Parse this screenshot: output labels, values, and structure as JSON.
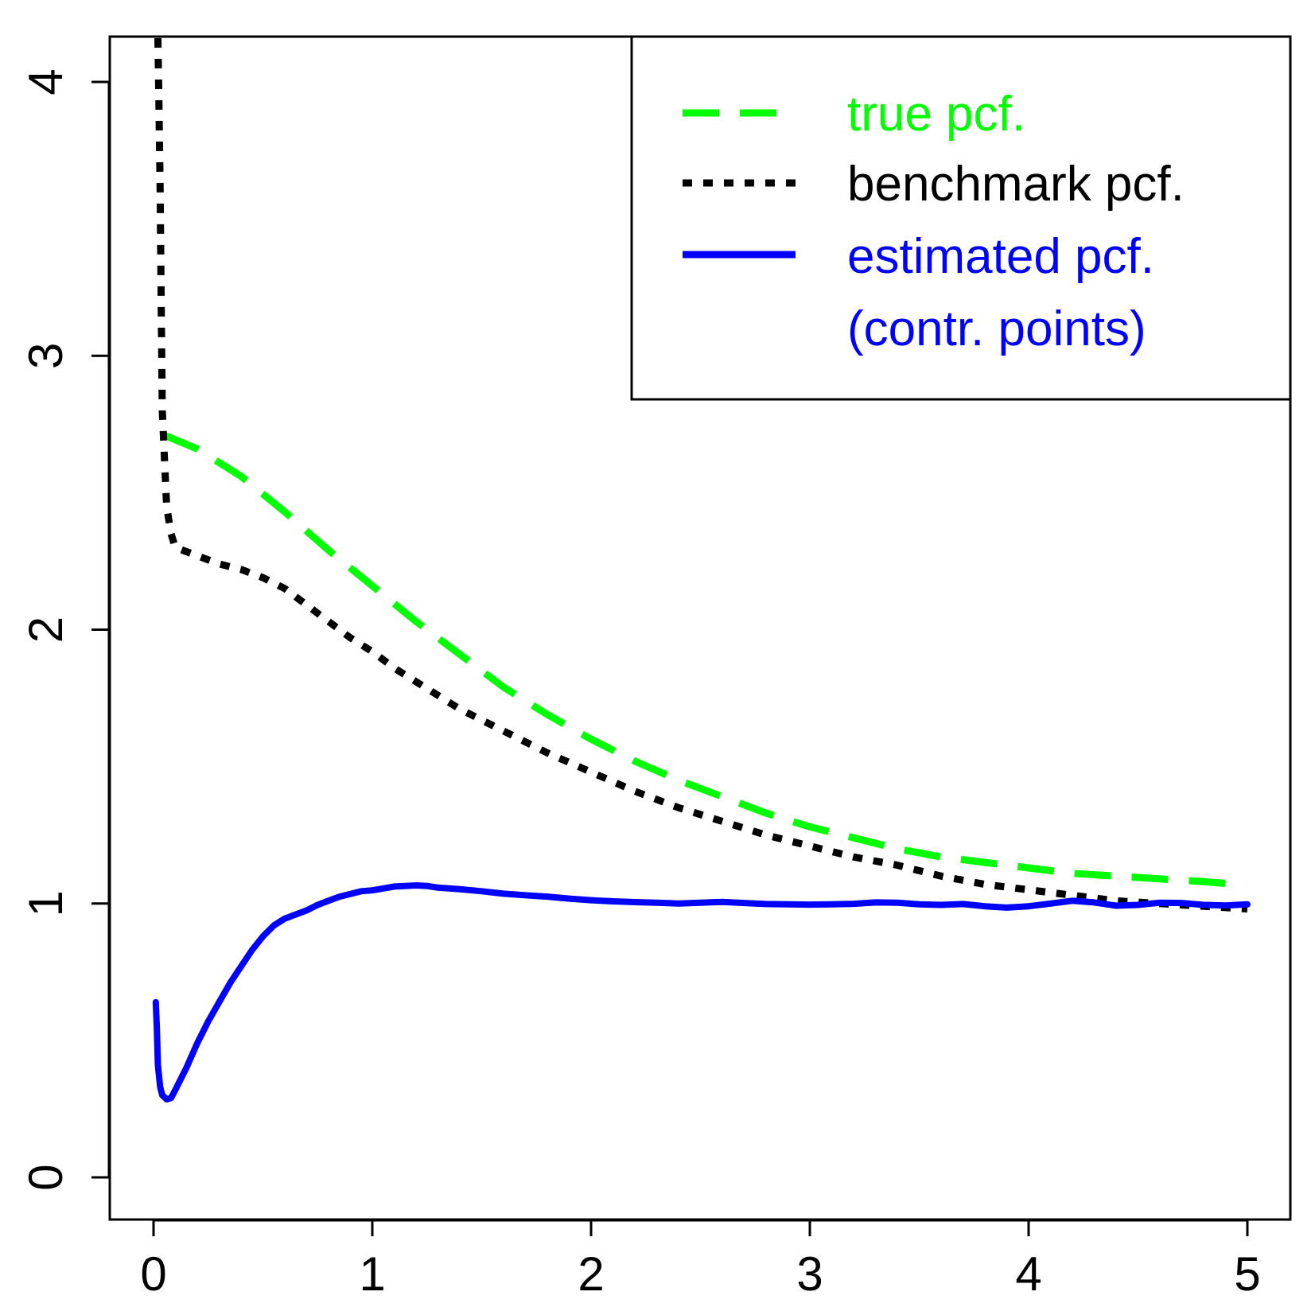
{
  "chart_data": {
    "type": "line",
    "title": "",
    "xlabel": "",
    "ylabel": "",
    "xlim": [
      0,
      5
    ],
    "ylim": [
      -0.16,
      4.16
    ],
    "x_ticks": [
      0,
      1,
      2,
      3,
      4,
      5
    ],
    "y_ticks": [
      0,
      1,
      2,
      3,
      4
    ],
    "x_tick_labels": [
      "0",
      "1",
      "2",
      "3",
      "4",
      "5"
    ],
    "y_tick_labels": [
      "0",
      "1",
      "2",
      "3",
      "4"
    ],
    "grid": false,
    "legend_position": "top-right",
    "series": [
      {
        "name": "true pcf.",
        "color": "#00ff00",
        "style": "dashed",
        "x": [
          0.05,
          0.2,
          0.4,
          0.6,
          0.8,
          1.0,
          1.2,
          1.4,
          1.6,
          1.8,
          2.0,
          2.2,
          2.4,
          2.6,
          2.8,
          3.0,
          3.2,
          3.4,
          3.6,
          3.8,
          4.0,
          4.2,
          4.4,
          4.6,
          4.8,
          4.95
        ],
        "values": [
          2.71,
          2.66,
          2.56,
          2.43,
          2.29,
          2.16,
          2.03,
          1.91,
          1.79,
          1.69,
          1.6,
          1.52,
          1.45,
          1.39,
          1.33,
          1.28,
          1.24,
          1.2,
          1.17,
          1.15,
          1.13,
          1.11,
          1.1,
          1.09,
          1.08,
          1.07
        ]
      },
      {
        "name": "benchmark pcf.",
        "color": "#000000",
        "style": "dotted",
        "x": [
          0.02,
          0.025,
          0.03,
          0.035,
          0.04,
          0.05,
          0.06,
          0.08,
          0.1,
          0.2,
          0.3,
          0.4,
          0.5,
          0.6,
          0.7,
          0.8,
          0.9,
          1.0,
          1.1,
          1.2,
          1.3,
          1.4,
          1.5,
          1.6,
          1.7,
          1.8,
          2.0,
          2.2,
          2.4,
          2.6,
          2.8,
          3.0,
          3.2,
          3.4,
          3.6,
          3.8,
          4.0,
          4.2,
          4.4,
          4.6,
          4.8,
          5.0
        ],
        "values": [
          4.16,
          3.9,
          3.6,
          3.2,
          2.8,
          2.62,
          2.45,
          2.35,
          2.3,
          2.27,
          2.24,
          2.22,
          2.19,
          2.15,
          2.09,
          2.03,
          1.97,
          1.92,
          1.86,
          1.81,
          1.76,
          1.71,
          1.67,
          1.63,
          1.59,
          1.55,
          1.48,
          1.41,
          1.35,
          1.3,
          1.25,
          1.21,
          1.17,
          1.14,
          1.1,
          1.07,
          1.05,
          1.03,
          1.01,
          1.0,
          0.99,
          0.98
        ]
      },
      {
        "name": "estimated pcf. (contr. points)",
        "color": "#0000ff",
        "style": "solid",
        "x": [
          0.01,
          0.015,
          0.02,
          0.03,
          0.04,
          0.06,
          0.08,
          0.1,
          0.15,
          0.2,
          0.25,
          0.3,
          0.35,
          0.4,
          0.45,
          0.5,
          0.55,
          0.6,
          0.65,
          0.7,
          0.75,
          0.8,
          0.85,
          0.9,
          0.95,
          1.0,
          1.05,
          1.1,
          1.15,
          1.2,
          1.25,
          1.3,
          1.4,
          1.5,
          1.6,
          1.7,
          1.8,
          1.9,
          2.0,
          2.1,
          2.2,
          2.3,
          2.4,
          2.5,
          2.6,
          2.7,
          2.8,
          2.9,
          3.0,
          3.1,
          3.2,
          3.3,
          3.4,
          3.5,
          3.6,
          3.7,
          3.8,
          3.9,
          4.0,
          4.1,
          4.2,
          4.3,
          4.4,
          4.5,
          4.6,
          4.7,
          4.8,
          4.9,
          5.0
        ],
        "values": [
          0.64,
          0.55,
          0.41,
          0.33,
          0.3,
          0.285,
          0.29,
          0.32,
          0.4,
          0.49,
          0.57,
          0.64,
          0.71,
          0.77,
          0.83,
          0.88,
          0.92,
          0.945,
          0.96,
          0.975,
          0.995,
          1.01,
          1.025,
          1.035,
          1.045,
          1.048,
          1.055,
          1.062,
          1.064,
          1.066,
          1.064,
          1.058,
          1.052,
          1.045,
          1.036,
          1.03,
          1.025,
          1.018,
          1.012,
          1.008,
          1.005,
          1.003,
          1.0,
          1.003,
          1.006,
          1.002,
          0.998,
          0.997,
          0.996,
          0.997,
          0.999,
          1.004,
          1.003,
          0.997,
          0.995,
          0.998,
          0.99,
          0.985,
          0.99,
          1.0,
          1.01,
          1.004,
          0.992,
          0.995,
          1.003,
          1.002,
          0.995,
          0.993,
          0.997
        ]
      }
    ],
    "legend": {
      "entries": [
        {
          "label": "true pcf.",
          "color": "#00ff00",
          "style": "dashed"
        },
        {
          "label": "benchmark pcf.",
          "color": "#000000",
          "style": "dotted"
        },
        {
          "label": "estimated pcf.",
          "color": "#0000ff",
          "style": "solid"
        }
      ],
      "continuation_label": "(contr. points)",
      "continuation_color": "#0000ff"
    }
  }
}
